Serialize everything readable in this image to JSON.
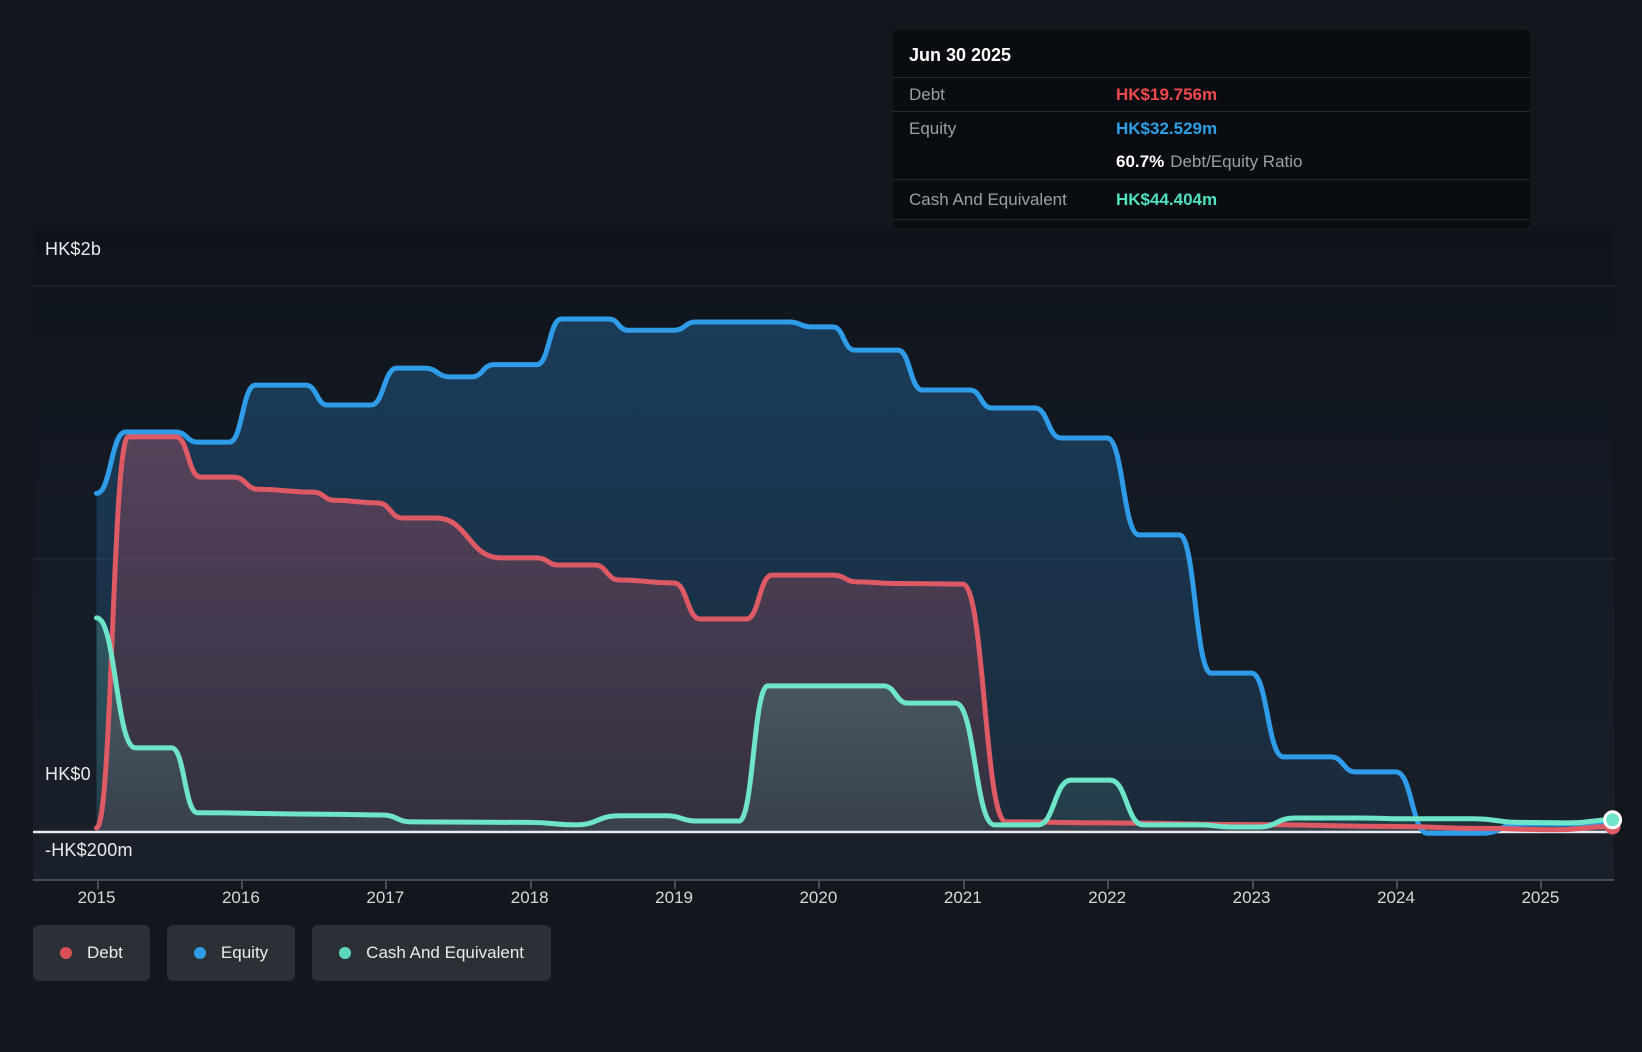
{
  "tooltip": {
    "date": "Jun 30 2025",
    "debt": {
      "label": "Debt",
      "value": "HK$19.756m",
      "color": "#f2494f"
    },
    "equity": {
      "label": "Equity",
      "value": "HK$32.529m",
      "color": "#2d9fe6"
    },
    "ratio_value": "60.7%",
    "ratio_label": "Debt/Equity Ratio",
    "cash": {
      "label": "Cash And Equivalent",
      "value": "HK$44.404m",
      "color": "#50e2bd"
    }
  },
  "legend": {
    "items": [
      {
        "label": "Debt",
        "color": "#d95156"
      },
      {
        "label": "Equity",
        "color": "#2d9ce4"
      },
      {
        "label": "Cash And Equivalent",
        "color": "#5cd9c0"
      }
    ]
  },
  "chart_data": {
    "type": "area",
    "title": "Debt, Equity and Cash history",
    "unit": "HK$ millions",
    "x_axis": {
      "ticks": [
        "2015",
        "2016",
        "2017",
        "2018",
        "2019",
        "2020",
        "2021",
        "2022",
        "2023",
        "2024",
        "2025"
      ],
      "tick_values": [
        2015,
        2016,
        2017,
        2018,
        2019,
        2020,
        2021,
        2022,
        2023,
        2024,
        2025
      ],
      "range": [
        2014.56,
        2025.51
      ]
    },
    "y_axis": {
      "labels": [
        {
          "text": "HK$2b",
          "value": 2000
        },
        {
          "text": "HK$0",
          "value": 0
        },
        {
          "text": "-HK$200m",
          "value": -200
        }
      ],
      "gridline_values": [
        2000,
        1000
      ],
      "zero_line": 0,
      "range": [
        -176,
        2205
      ],
      "grid": true
    },
    "legend_position": "bottom-left",
    "series": [
      {
        "id": "equity",
        "name": "Equity",
        "color": "#2e9ce8",
        "fill_top": "rgba(45,140,215,0.32)",
        "fill_bottom": "rgba(45,140,215,0.10)",
        "ring": false,
        "points": [
          [
            2015.0,
            1240
          ],
          [
            2015.2,
            1465
          ],
          [
            2015.55,
            1465
          ],
          [
            2015.7,
            1428
          ],
          [
            2015.92,
            1428
          ],
          [
            2016.1,
            1637
          ],
          [
            2016.45,
            1637
          ],
          [
            2016.6,
            1564
          ],
          [
            2016.9,
            1564
          ],
          [
            2017.08,
            1699
          ],
          [
            2017.27,
            1699
          ],
          [
            2017.45,
            1667
          ],
          [
            2017.6,
            1667
          ],
          [
            2017.75,
            1712
          ],
          [
            2018.05,
            1712
          ],
          [
            2018.22,
            1879
          ],
          [
            2018.55,
            1879
          ],
          [
            2018.68,
            1838
          ],
          [
            2019.0,
            1838
          ],
          [
            2019.15,
            1868
          ],
          [
            2019.8,
            1868
          ],
          [
            2019.95,
            1850
          ],
          [
            2020.1,
            1850
          ],
          [
            2020.25,
            1765
          ],
          [
            2020.55,
            1765
          ],
          [
            2020.72,
            1619
          ],
          [
            2021.05,
            1619
          ],
          [
            2021.2,
            1553
          ],
          [
            2021.5,
            1553
          ],
          [
            2021.68,
            1443
          ],
          [
            2022.0,
            1443
          ],
          [
            2022.22,
            1088
          ],
          [
            2022.5,
            1088
          ],
          [
            2022.72,
            582
          ],
          [
            2023.0,
            582
          ],
          [
            2023.22,
            275
          ],
          [
            2023.55,
            275
          ],
          [
            2023.72,
            220
          ],
          [
            2024.0,
            220
          ],
          [
            2024.22,
            -5
          ],
          [
            2024.6,
            -5
          ],
          [
            2024.85,
            29
          ],
          [
            2025.15,
            29
          ],
          [
            2025.5,
            32.5
          ]
        ]
      },
      {
        "id": "debt",
        "name": "Debt",
        "color": "#dd5a64",
        "fill_top": "rgba(222,88,106,0.30)",
        "fill_bottom": "rgba(222,88,106,0.12)",
        "ring": false,
        "points": [
          [
            2015.0,
            15
          ],
          [
            2015.22,
            1447
          ],
          [
            2015.55,
            1447
          ],
          [
            2015.72,
            1300
          ],
          [
            2015.95,
            1300
          ],
          [
            2016.12,
            1255
          ],
          [
            2016.5,
            1245
          ],
          [
            2016.65,
            1215
          ],
          [
            2016.95,
            1205
          ],
          [
            2017.12,
            1150
          ],
          [
            2017.35,
            1150
          ],
          [
            2017.8,
            1004
          ],
          [
            2018.05,
            1004
          ],
          [
            2018.2,
            978
          ],
          [
            2018.45,
            978
          ],
          [
            2018.62,
            923
          ],
          [
            2019.0,
            912
          ],
          [
            2019.18,
            780
          ],
          [
            2019.5,
            780
          ],
          [
            2019.68,
            941
          ],
          [
            2020.1,
            941
          ],
          [
            2020.27,
            916
          ],
          [
            2020.55,
            910
          ],
          [
            2021.0,
            908
          ],
          [
            2021.3,
            37
          ],
          [
            2022.0,
            33
          ],
          [
            2023.0,
            27
          ],
          [
            2024.0,
            20
          ],
          [
            2024.6,
            13
          ],
          [
            2025.1,
            8
          ],
          [
            2025.5,
            19.8
          ]
        ]
      },
      {
        "id": "cash",
        "name": "Cash And Equivalent",
        "color": "#6ee4c8",
        "fill_top": "rgba(110,228,200,0.22)",
        "fill_bottom": "rgba(110,228,200,0.09)",
        "ring": true,
        "points": [
          [
            2015.0,
            784
          ],
          [
            2015.27,
            308
          ],
          [
            2015.52,
            308
          ],
          [
            2015.7,
            70
          ],
          [
            2016.6,
            65
          ],
          [
            2016.98,
            62
          ],
          [
            2017.18,
            37
          ],
          [
            2018.0,
            35
          ],
          [
            2018.32,
            26
          ],
          [
            2018.62,
            59
          ],
          [
            2018.95,
            59
          ],
          [
            2019.15,
            40
          ],
          [
            2019.45,
            40
          ],
          [
            2019.65,
            535
          ],
          [
            2020.45,
            535
          ],
          [
            2020.62,
            472
          ],
          [
            2020.95,
            472
          ],
          [
            2021.22,
            26
          ],
          [
            2021.52,
            26
          ],
          [
            2021.75,
            190
          ],
          [
            2022.02,
            190
          ],
          [
            2022.25,
            26
          ],
          [
            2022.65,
            26
          ],
          [
            2022.85,
            18
          ],
          [
            2023.05,
            18
          ],
          [
            2023.3,
            51
          ],
          [
            2023.75,
            51
          ],
          [
            2024.05,
            48
          ],
          [
            2024.55,
            48
          ],
          [
            2024.85,
            35
          ],
          [
            2025.2,
            33
          ],
          [
            2025.5,
            44.4
          ]
        ]
      }
    ]
  }
}
